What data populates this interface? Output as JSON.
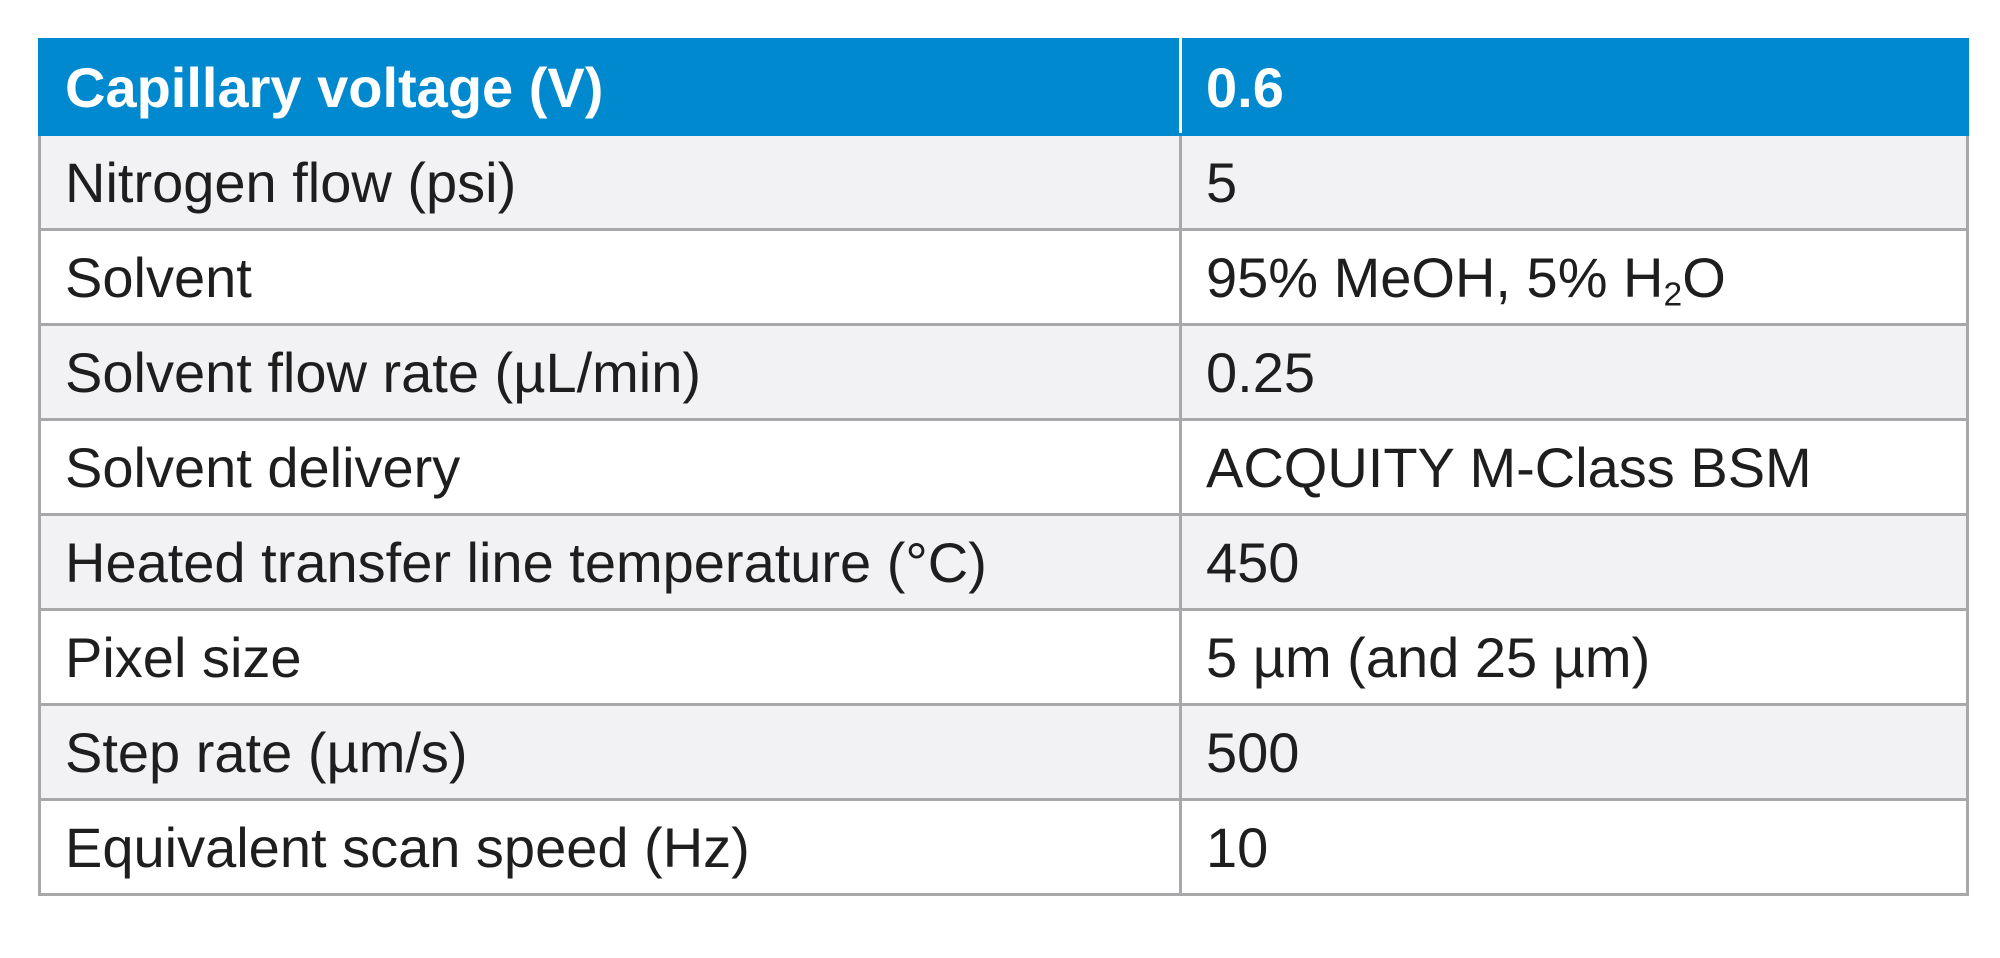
{
  "table": {
    "rows": [
      {
        "label": "Capillary voltage (V)",
        "value": "0.6"
      },
      {
        "label": "Nitrogen flow (psi)",
        "value": "5"
      },
      {
        "label": "Solvent",
        "value_prefix": "95% MeOH, 5% H",
        "value_sub": "2",
        "value_suffix": "O"
      },
      {
        "label": "Solvent flow rate (µL/min)",
        "value": "0.25"
      },
      {
        "label": "Solvent delivery",
        "value": "ACQUITY M-Class BSM"
      },
      {
        "label": "Heated transfer line temperature (°C)",
        "value": "450"
      },
      {
        "label": "Pixel size",
        "value": "5 µm (and 25 µm)"
      },
      {
        "label": "Step rate (µm/s)",
        "value": "500"
      },
      {
        "label": "Equivalent scan speed (Hz)",
        "value": "10"
      }
    ]
  },
  "colors": {
    "header_bg": "#0089cf",
    "header_text": "#ffffff",
    "shaded_row_bg": "#f2f2f4",
    "plain_row_bg": "#ffffff",
    "border": "#a8a8ab",
    "text": "#1e1e1e"
  }
}
